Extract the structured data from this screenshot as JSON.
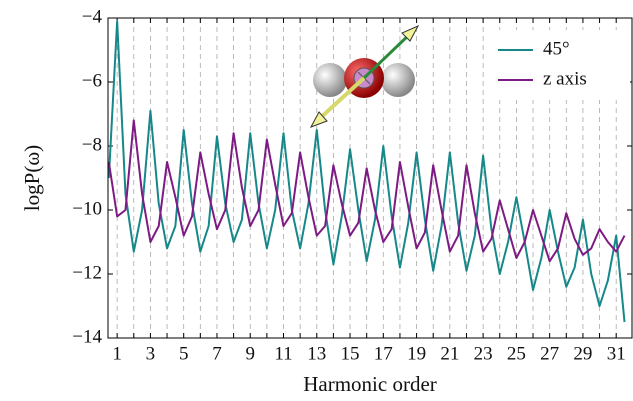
{
  "chart_data": {
    "type": "line",
    "x_label": "Harmonic order",
    "y_label": "logP(ω)",
    "x": [
      0.5,
      1,
      1.5,
      2,
      2.5,
      3,
      3.5,
      4,
      4.5,
      5,
      5.5,
      6,
      6.5,
      7,
      7.5,
      8,
      8.5,
      9,
      9.5,
      10,
      10.5,
      11,
      11.5,
      12,
      12.5,
      13,
      13.5,
      14,
      14.5,
      15,
      15.5,
      16,
      16.5,
      17,
      17.5,
      18,
      18.5,
      19,
      19.5,
      20,
      20.5,
      21,
      21.5,
      22,
      22.5,
      23,
      23.5,
      24,
      24.5,
      25,
      25.5,
      26,
      26.5,
      27,
      27.5,
      28,
      28.5,
      29,
      29.5,
      30,
      30.5,
      31,
      31.5
    ],
    "series": [
      {
        "name": "45°",
        "color": "#16888a",
        "values": [
          -9.0,
          -4.1,
          -9.5,
          -11.3,
          -10.0,
          -6.9,
          -9.8,
          -11.2,
          -10.5,
          -7.5,
          -9.8,
          -11.3,
          -10.5,
          -7.7,
          -9.8,
          -11.0,
          -10.3,
          -7.6,
          -9.8,
          -11.2,
          -10.0,
          -7.6,
          -10.0,
          -11.2,
          -9.8,
          -7.5,
          -10.0,
          -11.7,
          -10.2,
          -8.1,
          -10.0,
          -11.6,
          -10.3,
          -8.0,
          -10.2,
          -11.8,
          -10.4,
          -8.2,
          -10.3,
          -11.9,
          -10.5,
          -8.2,
          -10.4,
          -11.9,
          -10.8,
          -8.3,
          -10.6,
          -12.0,
          -11.0,
          -9.6,
          -11.0,
          -12.5,
          -11.5,
          -10.0,
          -11.3,
          -12.4,
          -11.8,
          -10.3,
          -12.0,
          -13.0,
          -12.2,
          -10.8,
          -13.5
        ]
      },
      {
        "name": "z axis",
        "color": "#7e1a84",
        "values": [
          -8.5,
          -10.2,
          -10.0,
          -7.2,
          -9.5,
          -11.0,
          -10.5,
          -8.5,
          -9.6,
          -10.8,
          -10.2,
          -8.2,
          -9.5,
          -10.6,
          -10.0,
          -7.6,
          -9.3,
          -10.5,
          -10.0,
          -7.8,
          -9.2,
          -10.5,
          -10.1,
          -8.2,
          -9.6,
          -10.8,
          -10.5,
          -8.6,
          -9.8,
          -10.8,
          -10.4,
          -8.7,
          -10.0,
          -11.0,
          -10.6,
          -8.5,
          -9.9,
          -11.2,
          -10.7,
          -8.6,
          -10.0,
          -11.3,
          -10.8,
          -8.6,
          -10.1,
          -11.3,
          -10.9,
          -9.7,
          -10.6,
          -11.5,
          -11.0,
          -10.0,
          -10.8,
          -11.6,
          -11.2,
          -10.1,
          -10.9,
          -11.4,
          -11.2,
          -10.6,
          -11.0,
          -11.3,
          -10.8
        ]
      }
    ],
    "xlim": [
      0.45,
      31.95
    ],
    "ylim": [
      -14,
      -4
    ],
    "xticks": [
      1,
      3,
      5,
      7,
      9,
      11,
      13,
      15,
      17,
      19,
      21,
      23,
      25,
      27,
      29,
      31
    ],
    "minor_xticks": [
      2,
      4,
      6,
      8,
      10,
      12,
      14,
      16,
      18,
      20,
      22,
      24,
      26,
      28,
      30
    ],
    "yticks": [
      {
        "value": -14,
        "label": "−14"
      },
      {
        "value": -12,
        "label": "−12"
      },
      {
        "value": -10,
        "label": "−10"
      },
      {
        "value": -8,
        "label": "−8"
      },
      {
        "value": -6,
        "label": "−6"
      },
      {
        "value": -4,
        "label": "−4"
      }
    ],
    "grid": "x-dashed",
    "legend": "upper-right"
  }
}
